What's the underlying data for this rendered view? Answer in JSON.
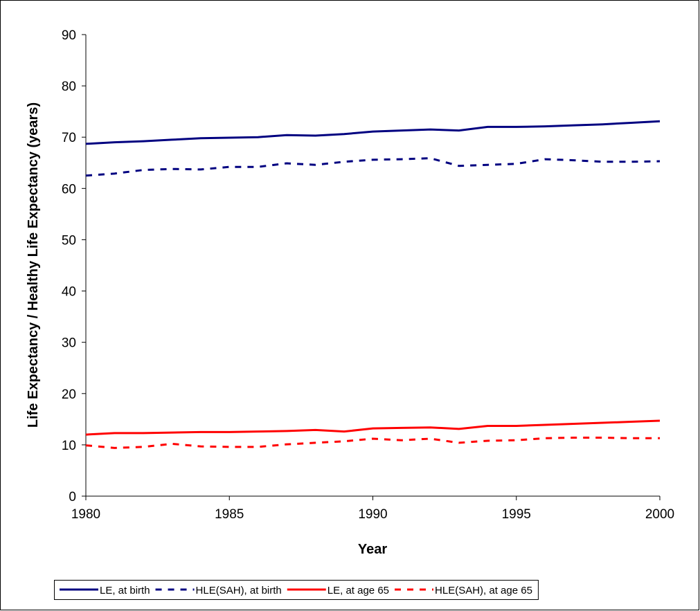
{
  "chart_data": {
    "type": "line",
    "x_label": "Year",
    "y_label": "Life Expectancy / Healthy Life Expectancy (years)",
    "x": [
      1980,
      1981,
      1982,
      1983,
      1984,
      1985,
      1986,
      1987,
      1988,
      1989,
      1990,
      1991,
      1992,
      1993,
      1994,
      1995,
      1996,
      1997,
      1998,
      1999,
      2000
    ],
    "series": [
      {
        "name": "LE, at birth",
        "color": "#000080",
        "linestyle": "solid",
        "values": [
          68.7,
          69.0,
          69.2,
          69.5,
          69.8,
          69.9,
          70.0,
          70.4,
          70.3,
          70.6,
          71.1,
          71.3,
          71.5,
          71.3,
          72.0,
          72.0,
          72.1,
          72.3,
          72.5,
          72.8,
          73.1
        ]
      },
      {
        "name": "HLE(SAH), at birth",
        "color": "#000080",
        "linestyle": "dashed",
        "values": [
          62.5,
          62.9,
          63.6,
          63.8,
          63.7,
          64.2,
          64.2,
          64.9,
          64.6,
          65.2,
          65.6,
          65.7,
          65.9,
          64.4,
          64.6,
          64.8,
          65.7,
          65.5,
          65.2,
          65.2,
          65.3
        ]
      },
      {
        "name": "LE, at age 65",
        "color": "#ff0000",
        "linestyle": "solid",
        "values": [
          12.0,
          12.3,
          12.3,
          12.4,
          12.5,
          12.5,
          12.6,
          12.7,
          12.9,
          12.6,
          13.2,
          13.3,
          13.4,
          13.1,
          13.7,
          13.7,
          13.9,
          14.1,
          14.3,
          14.5,
          14.7
        ]
      },
      {
        "name": "HLE(SAH), at age 65",
        "color": "#ff0000",
        "linestyle": "dashed",
        "values": [
          9.9,
          9.4,
          9.6,
          10.2,
          9.7,
          9.6,
          9.6,
          10.1,
          10.4,
          10.7,
          11.2,
          10.9,
          11.2,
          10.4,
          10.8,
          10.9,
          11.3,
          11.4,
          11.4,
          11.3,
          11.3
        ]
      }
    ],
    "xlim": [
      1980,
      2000
    ],
    "xticks": [
      1980,
      1985,
      1990,
      1995,
      2000
    ],
    "ylim": [
      0,
      90
    ],
    "yticks": [
      0,
      10,
      20,
      30,
      40,
      50,
      60,
      70,
      80,
      90
    ],
    "grid": false,
    "legend": "bottom"
  }
}
